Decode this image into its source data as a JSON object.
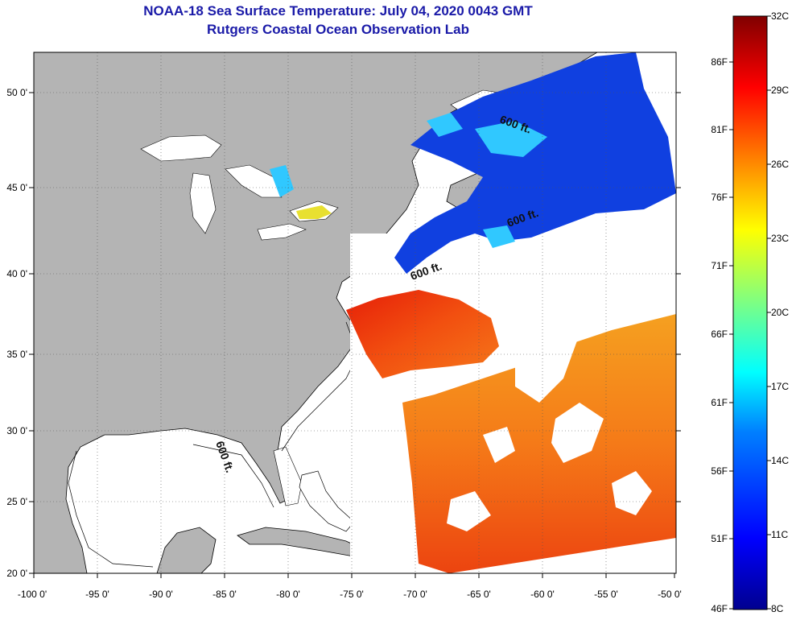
{
  "header": {
    "title": "NOAA-18 Sea Surface Temperature:  July 04, 2020 0043 GMT",
    "subtitle": "Rutgers Coastal Ocean Observation Lab"
  },
  "map": {
    "lon_range": [
      -100,
      -50
    ],
    "lat_range": [
      20,
      52.5
    ],
    "lon_ticks": [
      "-100 0'",
      "-95 0'",
      "-90 0'",
      "-85 0'",
      "-80 0'",
      "-75 0'",
      "-70 0'",
      "-65 0'",
      "-60 0'",
      "-55 0'",
      "-50 0'"
    ],
    "lat_ticks": [
      "20 0'",
      "25 0'",
      "30 0'",
      "35 0'",
      "40 0'",
      "45 0'",
      "50 0'"
    ],
    "isobath_label": "600 ft.",
    "isobath_labels": [
      "600 ft.",
      "600 ft.",
      "600 ft.",
      "600 ft."
    ],
    "land_color": "#b4b4b4",
    "cloud_color": "#ffffff"
  },
  "colorbar": {
    "celsius_labels": [
      "32C",
      "29C",
      "26C",
      "23C",
      "20C",
      "17C",
      "14C",
      "11C",
      "8C"
    ],
    "fahrenheit_labels": [
      "86F",
      "81F",
      "76F",
      "71F",
      "66F",
      "61F",
      "56F",
      "51F",
      "46F"
    ],
    "min_c": 8,
    "max_c": 32
  }
}
